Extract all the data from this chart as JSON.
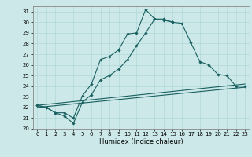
{
  "xlabel": "Humidex (Indice chaleur)",
  "bg_color": "#cce8e8",
  "line_color": "#1a6060",
  "xlim": [
    -0.5,
    23.5
  ],
  "ylim": [
    20,
    31.5
  ],
  "xticks": [
    0,
    1,
    2,
    3,
    4,
    5,
    6,
    7,
    8,
    9,
    10,
    11,
    12,
    13,
    14,
    15,
    16,
    17,
    18,
    19,
    20,
    21,
    22,
    23
  ],
  "yticks": [
    20,
    21,
    22,
    23,
    24,
    25,
    26,
    27,
    28,
    29,
    30,
    31
  ],
  "series1_x": [
    0,
    1,
    2,
    3,
    4,
    5,
    6,
    7,
    8,
    9,
    10,
    11,
    12,
    13,
    14,
    15,
    16,
    17,
    18,
    19,
    20,
    21,
    22,
    23
  ],
  "series1_y": [
    22.2,
    22.0,
    21.5,
    21.5,
    21.0,
    23.1,
    24.2,
    26.5,
    26.8,
    27.4,
    28.9,
    29.0,
    31.2,
    30.3,
    30.3,
    30.0,
    29.9,
    28.1,
    26.3,
    26.0,
    25.1,
    25.0,
    24.0,
    24.0
  ],
  "series2_x": [
    0,
    1,
    2,
    3,
    4,
    5,
    6,
    7,
    8,
    9,
    10,
    11,
    12,
    13,
    14,
    15
  ],
  "series2_y": [
    22.2,
    22.0,
    21.5,
    21.2,
    20.5,
    22.5,
    23.2,
    24.6,
    25.0,
    25.6,
    26.5,
    27.8,
    29.0,
    30.3,
    30.2,
    30.0
  ],
  "line3_x": [
    0,
    23
  ],
  "line3_y": [
    22.2,
    24.2
  ],
  "line4_x": [
    0,
    23
  ],
  "line4_y": [
    22.0,
    23.9
  ],
  "grid_color": "#aad4d4",
  "marker": "D",
  "markersize": 1.8,
  "linewidth": 0.8,
  "tick_fontsize": 5.0,
  "xlabel_fontsize": 6.0
}
